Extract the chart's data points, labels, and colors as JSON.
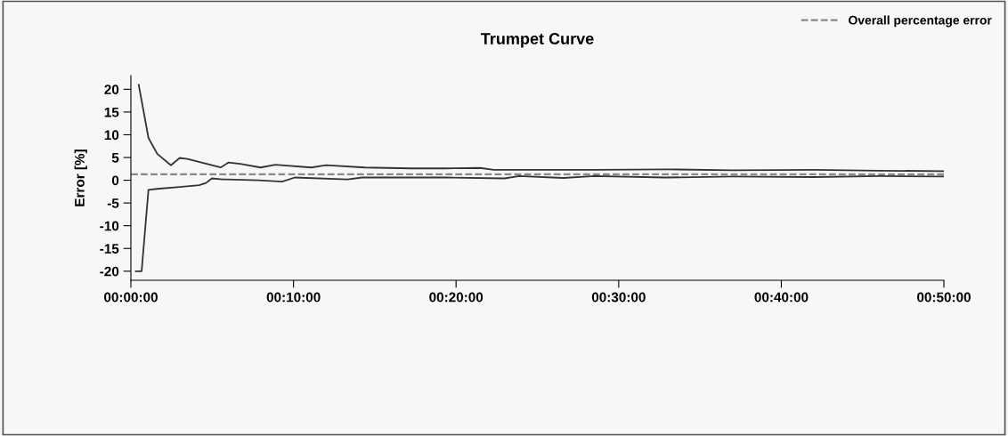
{
  "chart_data": {
    "type": "line",
    "title": "Trumpet Curve",
    "ylabel": "Error [%]",
    "series": [
      {
        "color": "#333333",
        "x": [
          0.008,
          0.018,
          0.027,
          0.041,
          0.05,
          0.058,
          0.092,
          0.1,
          0.112,
          0.133,
          0.148,
          0.185,
          0.2,
          0.24,
          0.287,
          0.322,
          0.358,
          0.372,
          0.413,
          0.475,
          0.548,
          0.617,
          0.7,
          0.767,
          0.833
        ],
        "values": [
          21.0,
          9.3,
          5.8,
          3.3,
          4.9,
          4.7,
          2.8,
          3.9,
          3.6,
          2.8,
          3.4,
          2.8,
          3.3,
          2.8,
          2.6,
          2.6,
          2.7,
          2.3,
          2.3,
          2.3,
          2.4,
          2.2,
          2.3,
          2.1,
          2.0
        ]
      },
      {
        "color": "#333333",
        "x": [
          0.005,
          0.011,
          0.018,
          0.027,
          0.05,
          0.07,
          0.077,
          0.083,
          0.094,
          0.131,
          0.155,
          0.168,
          0.222,
          0.237,
          0.322,
          0.383,
          0.398,
          0.443,
          0.475,
          0.548,
          0.617,
          0.7,
          0.767,
          0.833
        ],
        "values": [
          -20,
          -20,
          -2.1,
          -1.9,
          -1.5,
          -1.1,
          -0.6,
          0.4,
          0.2,
          0,
          -0.3,
          0.6,
          0.2,
          0.6,
          0.6,
          0.4,
          0.9,
          0.5,
          0.9,
          0.6,
          0.8,
          0.7,
          0.9,
          0.8
        ]
      }
    ],
    "ref_lines": [
      {
        "axis": "y",
        "value": 1.3,
        "label": "Overall percentage error",
        "color": "#888888",
        "line_style": "dashed"
      }
    ],
    "xlim": [
      0,
      0.8333
    ],
    "xticks": [
      {
        "value": 0,
        "label": "00:00:00"
      },
      {
        "value": 0.1667,
        "label": "00:10:00"
      },
      {
        "value": 0.3333,
        "label": "00:20:00"
      },
      {
        "value": 0.5,
        "label": "00:30:00"
      },
      {
        "value": 0.6667,
        "label": "00:40:00"
      },
      {
        "value": 0.8333,
        "label": "00:50:00"
      }
    ],
    "ylim": [
      -22,
      23
    ],
    "yticks": [
      -20,
      -15,
      -10,
      -5,
      0,
      5,
      10,
      15,
      20
    ],
    "grid": false,
    "legend": "top right",
    "marker": "none",
    "line_style": "solid"
  }
}
